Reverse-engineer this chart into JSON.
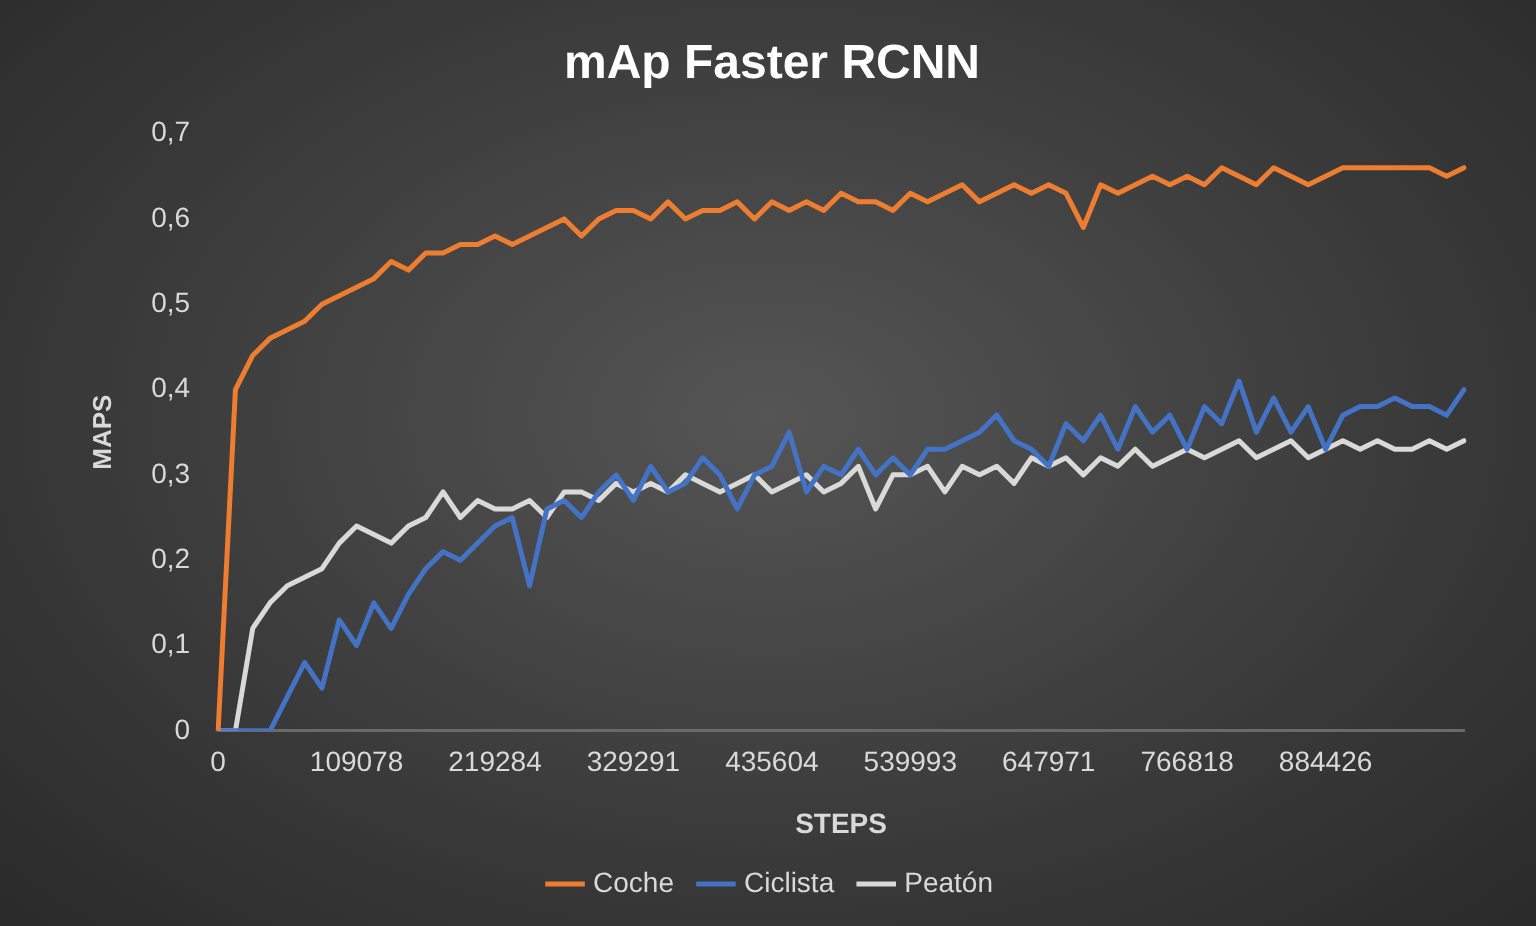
{
  "chart_data": {
    "type": "line",
    "title": "mAp Faster RCNN",
    "xlabel": "STEPS",
    "ylabel": "MAPS",
    "categories": [
      "0",
      null,
      null,
      null,
      null,
      null,
      null,
      null,
      "109078",
      null,
      null,
      null,
      null,
      null,
      null,
      null,
      "219284",
      null,
      null,
      null,
      null,
      null,
      null,
      null,
      "329291",
      null,
      null,
      null,
      null,
      null,
      null,
      null,
      "435604",
      null,
      null,
      null,
      null,
      null,
      null,
      null,
      "539993",
      null,
      null,
      null,
      null,
      null,
      null,
      null,
      "647971",
      null,
      null,
      null,
      null,
      null,
      null,
      null,
      "766818",
      null,
      null,
      null,
      null,
      null,
      null,
      null,
      "884426",
      null,
      null,
      null,
      null,
      null,
      null,
      null,
      null
    ],
    "series": [
      {
        "name": "Coche",
        "color": "#ed7d31",
        "values": [
          0,
          0.4,
          0.44,
          0.46,
          0.47,
          0.48,
          0.5,
          0.51,
          0.52,
          0.53,
          0.55,
          0.54,
          0.56,
          0.56,
          0.57,
          0.57,
          0.58,
          0.57,
          0.58,
          0.59,
          0.6,
          0.58,
          0.6,
          0.61,
          0.61,
          0.6,
          0.62,
          0.6,
          0.61,
          0.61,
          0.62,
          0.6,
          0.62,
          0.61,
          0.62,
          0.61,
          0.63,
          0.62,
          0.62,
          0.61,
          0.63,
          0.62,
          0.63,
          0.64,
          0.62,
          0.63,
          0.64,
          0.63,
          0.64,
          0.63,
          0.59,
          0.64,
          0.63,
          0.64,
          0.65,
          0.64,
          0.65,
          0.64,
          0.66,
          0.65,
          0.64,
          0.66,
          0.65,
          0.64,
          0.65,
          0.66,
          0.66,
          0.66,
          0.66,
          0.66,
          0.66,
          0.65,
          0.66
        ]
      },
      {
        "name": "Ciclista",
        "color": "#4472c4",
        "values": [
          0,
          0,
          0,
          0,
          0.04,
          0.08,
          0.05,
          0.13,
          0.1,
          0.15,
          0.12,
          0.16,
          0.19,
          0.21,
          0.2,
          0.22,
          0.24,
          0.25,
          0.17,
          0.26,
          0.27,
          0.25,
          0.28,
          0.3,
          0.27,
          0.31,
          0.28,
          0.29,
          0.32,
          0.3,
          0.26,
          0.3,
          0.31,
          0.35,
          0.28,
          0.31,
          0.3,
          0.33,
          0.3,
          0.32,
          0.3,
          0.33,
          0.33,
          0.34,
          0.35,
          0.37,
          0.34,
          0.33,
          0.31,
          0.36,
          0.34,
          0.37,
          0.33,
          0.38,
          0.35,
          0.37,
          0.33,
          0.38,
          0.36,
          0.41,
          0.35,
          0.39,
          0.35,
          0.38,
          0.33,
          0.37,
          0.38,
          0.38,
          0.39,
          0.38,
          0.38,
          0.37,
          0.4
        ]
      },
      {
        "name": "Peatón",
        "color": "#d9d9d9",
        "values": [
          0,
          0,
          0.12,
          0.15,
          0.17,
          0.18,
          0.19,
          0.22,
          0.24,
          0.23,
          0.22,
          0.24,
          0.25,
          0.28,
          0.25,
          0.27,
          0.26,
          0.26,
          0.27,
          0.25,
          0.28,
          0.28,
          0.27,
          0.29,
          0.28,
          0.29,
          0.28,
          0.3,
          0.29,
          0.28,
          0.29,
          0.3,
          0.28,
          0.29,
          0.3,
          0.28,
          0.29,
          0.31,
          0.26,
          0.3,
          0.3,
          0.31,
          0.28,
          0.31,
          0.3,
          0.31,
          0.29,
          0.32,
          0.31,
          0.32,
          0.3,
          0.32,
          0.31,
          0.33,
          0.31,
          0.32,
          0.33,
          0.32,
          0.33,
          0.34,
          0.32,
          0.33,
          0.34,
          0.32,
          0.33,
          0.34,
          0.33,
          0.34,
          0.33,
          0.33,
          0.34,
          0.33,
          0.34
        ]
      }
    ],
    "ylim": [
      0,
      0.7
    ],
    "yticks": [
      {
        "value": 0,
        "label": "0"
      },
      {
        "value": 0.1,
        "label": "0,1"
      },
      {
        "value": 0.2,
        "label": "0,2"
      },
      {
        "value": 0.3,
        "label": "0,3"
      },
      {
        "value": 0.4,
        "label": "0,4"
      },
      {
        "value": 0.5,
        "label": "0,5"
      },
      {
        "value": 0.6,
        "label": "0,6"
      },
      {
        "value": 0.7,
        "label": "0,7"
      }
    ],
    "grid": false,
    "legend": "bottom",
    "marker": "none",
    "line_style": "solid"
  }
}
